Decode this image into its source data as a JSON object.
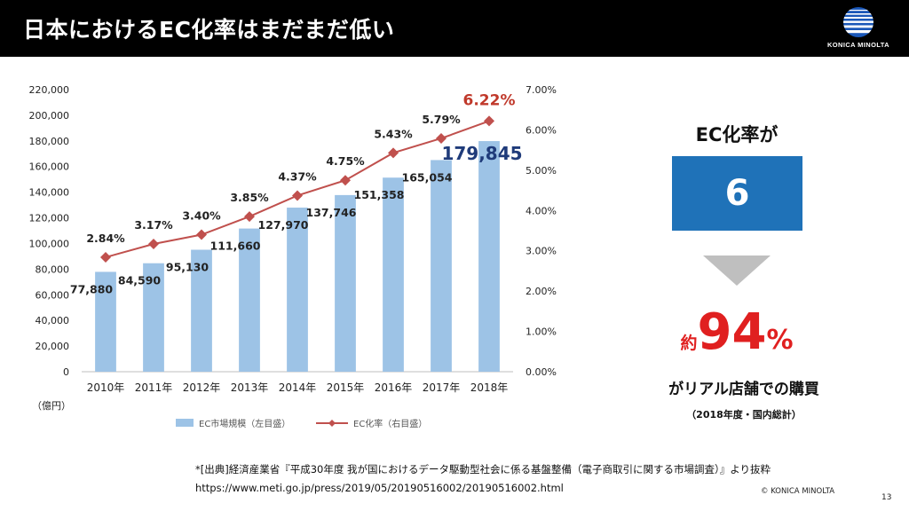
{
  "header": {
    "title": "日本におけるEC化率はまだまだ低い",
    "logo_text": "KONICA MINOLTA"
  },
  "chart_data": {
    "type": "bar+line",
    "categories": [
      "2010年",
      "2011年",
      "2012年",
      "2013年",
      "2014年",
      "2015年",
      "2016年",
      "2017年",
      "2018年"
    ],
    "series": [
      {
        "name": "EC市場規模（左目盛）",
        "type": "bar",
        "axis": "left",
        "values": [
          77880,
          84590,
          95130,
          111660,
          127970,
          137746,
          151358,
          165054,
          179845
        ],
        "labels": [
          "77,880",
          "84,590",
          "95,130",
          "111,660",
          "127,970",
          "137,746",
          "151,358",
          "165,054",
          "179,845"
        ]
      },
      {
        "name": "EC化率（右目盛）",
        "type": "line",
        "axis": "right",
        "values": [
          2.84,
          3.17,
          3.4,
          3.85,
          4.37,
          4.75,
          5.43,
          5.79,
          6.22
        ],
        "labels": [
          "2.84%",
          "3.17%",
          "3.40%",
          "3.85%",
          "4.37%",
          "4.75%",
          "5.43%",
          "5.79%",
          "6.22%"
        ]
      }
    ],
    "left_axis": {
      "min": 0,
      "max": 220000,
      "ticks": [
        "0",
        "20,000",
        "40,000",
        "60,000",
        "80,000",
        "100,000",
        "120,000",
        "140,000",
        "160,000",
        "180,000",
        "200,000",
        "220,000"
      ]
    },
    "right_axis": {
      "min": 0,
      "max": 7,
      "ticks": [
        "0.00%",
        "1.00%",
        "2.00%",
        "3.00%",
        "4.00%",
        "5.00%",
        "6.00%",
        "7.00%"
      ]
    },
    "unit_label": "（億円）",
    "legend_position": "bottom",
    "grid": false
  },
  "colors": {
    "bar": "#9dc3e6",
    "line": "#c0504d",
    "highlight_blue": "#1f3b7a",
    "highlight_red": "#c0392b",
    "box": "#1f72b8",
    "accent_red": "#e02020"
  },
  "panel": {
    "heading": "EC化率が",
    "box_value": "6",
    "box_unit": "%",
    "big_prefix": "約",
    "big_number": "94",
    "big_unit": "%",
    "caption": "がリアル店舗での購買",
    "note": "（2018年度・国内総計）"
  },
  "footer": {
    "source_line1": "*[出典]経済産業省『平成30年度 我が国におけるデータ駆動型社会に係る基盤整備（電子商取引に関する市場調査）』より抜粋",
    "source_line2": "https://www.meti.go.jp/press/2019/05/20190516002/20190516002.html",
    "copyright": "© KONICA MINOLTA",
    "page_number": "13"
  }
}
